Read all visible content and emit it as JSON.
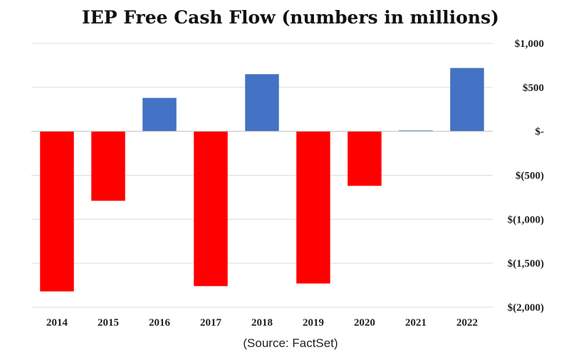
{
  "chart_data": {
    "type": "bar",
    "title": "IEP Free Cash Flow (numbers in millions)",
    "categories": [
      "2014",
      "2015",
      "2016",
      "2017",
      "2018",
      "2019",
      "2020",
      "2021",
      "2022"
    ],
    "values": [
      -1820,
      -790,
      380,
      -1760,
      650,
      -1730,
      -620,
      10,
      720
    ],
    "ylim": [
      -2000,
      1000
    ],
    "yticks": [
      1000,
      500,
      0,
      -500,
      -1000,
      -1500,
      -2000
    ],
    "ytick_labels": [
      "$1,000",
      "$500",
      "$-",
      "$(500)",
      "$(1,000)",
      "$(1,500)",
      "$(2,000)"
    ],
    "y_axis_side": "right",
    "grid": true,
    "colors": {
      "positive": "#4472c4",
      "negative": "#ff0000"
    },
    "source": "(Source: FactSet)"
  }
}
